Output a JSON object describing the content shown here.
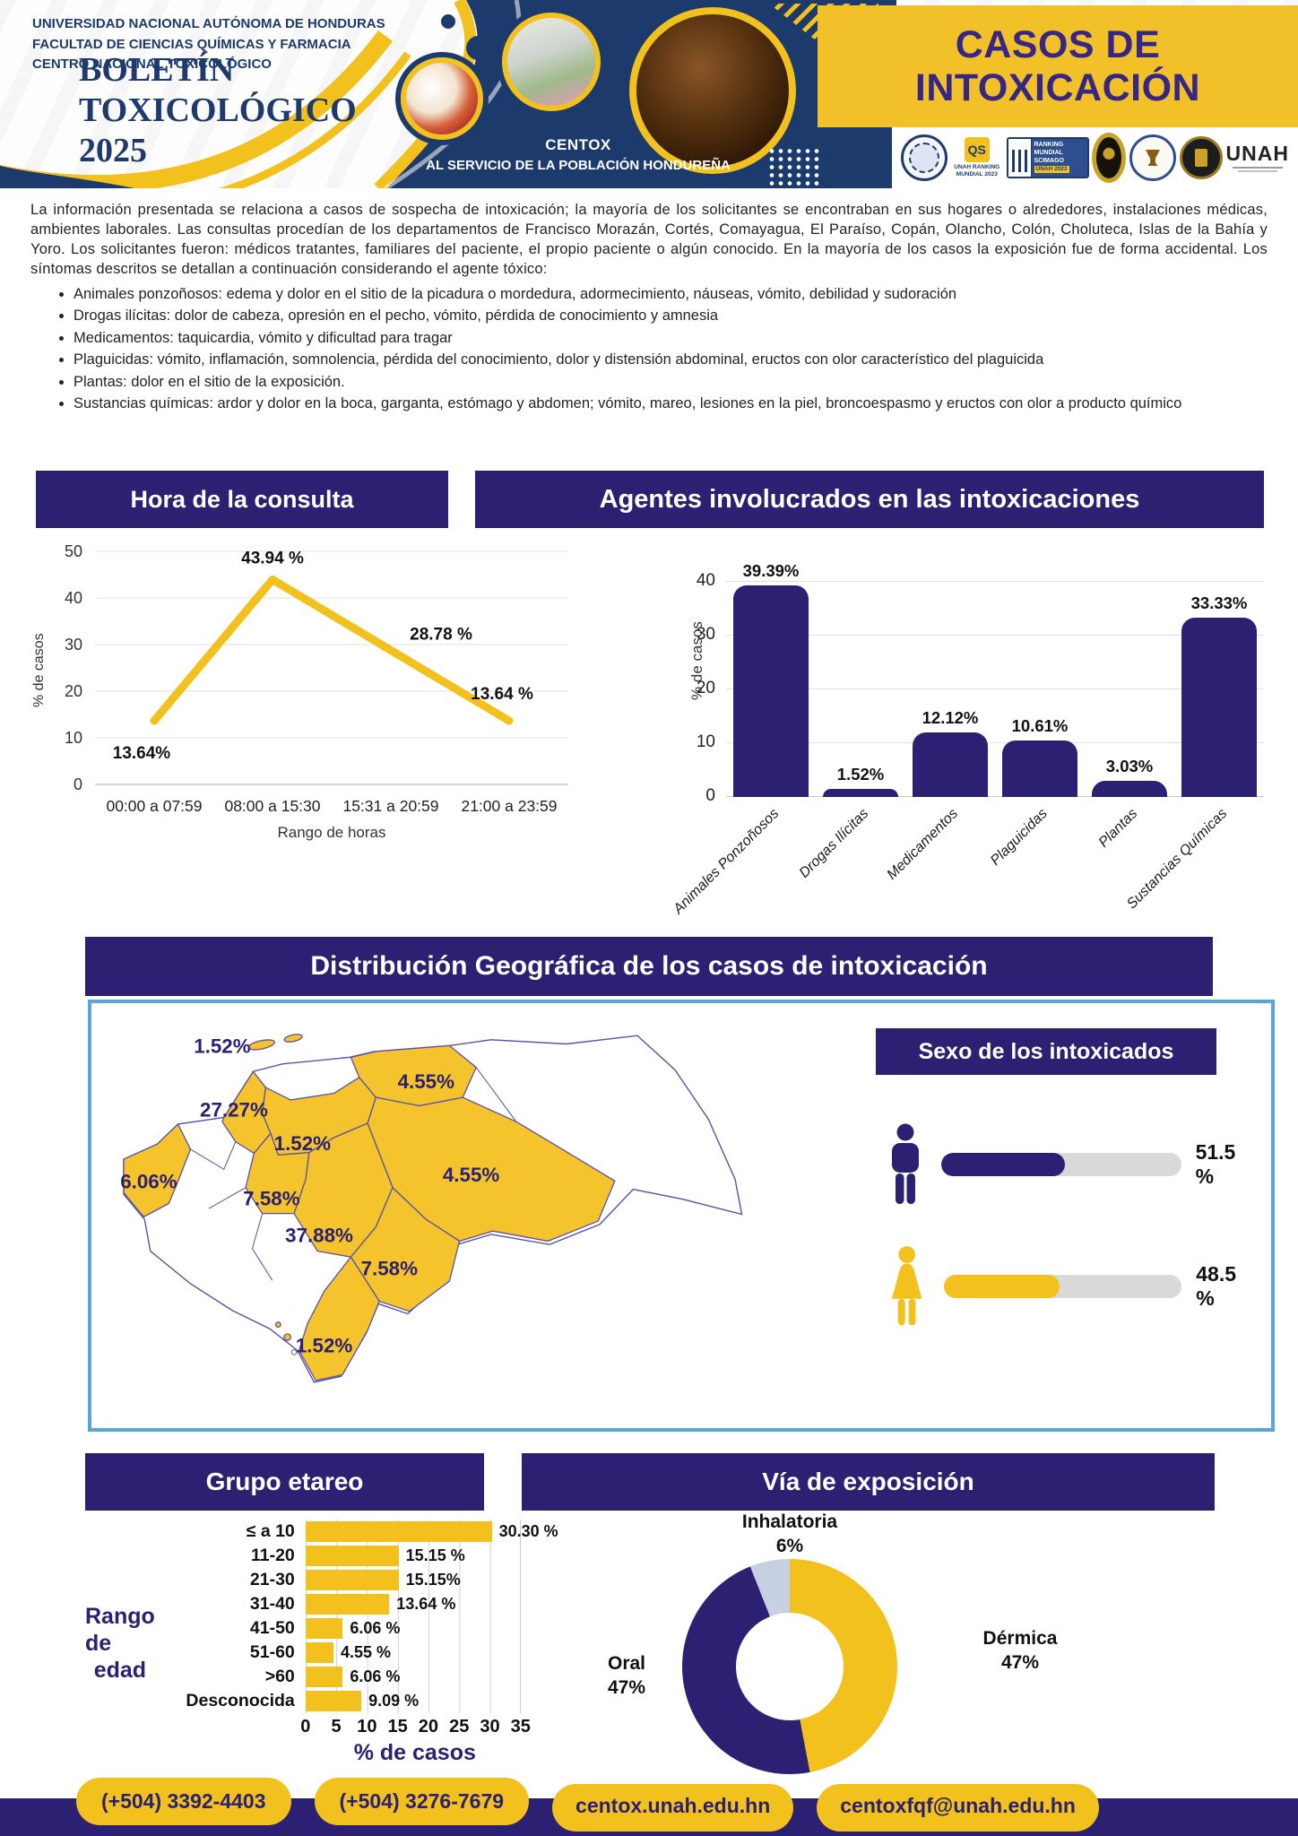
{
  "colors": {
    "banner_purple": "#2B2071",
    "header_navy": "#1C3A6C",
    "accent_yellow": "#F2C11E",
    "map_yellow": "#F5C32C",
    "panel_border_blue": "#56A7D8",
    "track_gray": "#D9D9D9"
  },
  "header": {
    "org_lines": [
      "UNIVERSIDAD NACIONAL AUTÓNOMA DE HONDURAS",
      "FACULTAD DE CIENCIAS QUÍMICAS Y FARMACIA",
      "CENTRO NACIONAL TOXICOLÓGICO"
    ],
    "bulletin_lines": [
      "BOLETÍN",
      "TOXICOLÓGICO",
      "2025"
    ],
    "centox_title": "CENTOX",
    "centox_subtitle": "AL SERVICIO DE LA POBLACIÓN HONDUREÑA",
    "main_title_lines": [
      "CASOS DE",
      "INTOXICACIÓN"
    ],
    "logo_texts": {
      "qs_mark": "QS",
      "qs_caption": "UNAH RANKING MUNDIAL 2023",
      "scimago_line1": "RANKING MUNDIAL SCIMAGO",
      "scimago_badge": "UNAH 2023",
      "unah_wordmark": "UNAH"
    }
  },
  "intro": {
    "paragraph": "La información presentada se relaciona a casos de sospecha de intoxicación; la mayoría de los solicitantes se encontraban en sus hogares o alrededores, instalaciones médicas, ambientes laborales. Las consultas procedían de los departamentos de Francisco Morazán, Cortés, Comayagua, El Paraíso, Copán, Olancho, Colón, Choluteca, Islas de la Bahía y Yoro. Los solicitantes fueron: médicos tratantes, familiares del paciente, el propio paciente o algún conocido. En la mayoría de los casos la exposición fue de forma accidental. Los síntomas descritos se detallan a continuación considerando el agente tóxico:",
    "bullets": [
      "Animales ponzoñosos: edema y dolor en el sitio de la picadura o mordedura, adormecimiento, náuseas, vómito, debilidad y sudoración",
      "Drogas ilícitas: dolor de cabeza, opresión en el pecho, vómito, pérdida de conocimiento y amnesia",
      "Medicamentos: taquicardia, vómito y dificultad para tragar",
      "Plaguicidas: vómito, inflamación, somnolencia, pérdida del conocimiento, dolor y distensión abdominal, eructos con olor característico del plaguicida",
      "Plantas: dolor en el sitio de la exposición.",
      "Sustancias químicas: ardor y dolor en la boca, garganta, estómago y abdomen; vómito, mareo, lesiones en la piel, broncoespasmo y eructos con olor a producto químico"
    ]
  },
  "sections": {
    "hora": "Hora de la consulta",
    "agentes": "Agentes involucrados en las intoxicaciones",
    "geo": "Distribución Geográfica de los casos de intoxicación",
    "sexo": "Sexo de los intoxicados",
    "grupo": "Grupo etareo",
    "via": "Vía de exposición"
  },
  "chart_data": [
    {
      "id": "hora_consulta",
      "type": "line",
      "title": "Hora de la consulta",
      "categories": [
        "00:00 a 07:59",
        "08:00 a 15:30",
        "15:31 a 20:59",
        "21:00 a 23:59"
      ],
      "values": [
        13.64,
        43.94,
        28.78,
        13.64
      ],
      "value_labels": [
        "13.64%",
        "43.94 %",
        "28.78 %",
        "13.64 %"
      ],
      "xlabel": "Rango de horas",
      "ylabel": "% de casos",
      "ylim": [
        0,
        50
      ],
      "yticks": [
        0,
        10,
        20,
        30,
        40,
        50
      ],
      "grid": true,
      "legend": "none",
      "line_color": "#F2C11E"
    },
    {
      "id": "agentes",
      "type": "bar",
      "title": "Agentes involucrados en las intoxicaciones",
      "categories": [
        "Animales Ponzoñosos",
        "Drogas Ilícitas",
        "Medicamentos",
        "Plaguicidas",
        "Plantas",
        "Sustancias Químicas"
      ],
      "values": [
        39.39,
        1.52,
        12.12,
        10.61,
        3.03,
        33.33
      ],
      "value_labels": [
        "39.39%",
        "1.52%",
        "12.12%",
        "10.61%",
        "3.03%",
        "33.33%"
      ],
      "xlabel": "",
      "ylabel": "% de casos",
      "ylim": [
        0,
        40
      ],
      "yticks": [
        0,
        10,
        20,
        30,
        40
      ],
      "grid": true,
      "legend": "none",
      "bar_color": "#2B2071"
    },
    {
      "id": "geo",
      "type": "map",
      "title": "Distribución Geográfica de los casos de intoxicación",
      "region_label_order": "islands, northwest, north-central, northeast-coast, west, central, capital-region, east, southeast, south-tip",
      "region_labels": [
        "1.52%",
        "27.27%",
        "1.52%",
        "4.55%",
        "6.06%",
        "7.58%",
        "37.88%",
        "4.55%",
        "7.58%",
        "1.52%"
      ],
      "highlight_color": "#F5C32C"
    },
    {
      "id": "sexo",
      "type": "bar",
      "title": "Sexo de los intoxicados",
      "categories": [
        "male-icon",
        "female-icon"
      ],
      "values": [
        51.5,
        48.5
      ],
      "value_labels": [
        "51.5 %",
        "48.5 %"
      ],
      "colors": [
        "#2B2071",
        "#F2C11E"
      ]
    },
    {
      "id": "grupo_etareo",
      "type": "bar",
      "title": "Grupo etareo",
      "categories": [
        "≤ a 10",
        "11-20",
        "21-30",
        "31-40",
        "41-50",
        "51-60",
        ">60",
        "Desconocida"
      ],
      "values": [
        30.3,
        15.15,
        15.15,
        13.64,
        6.06,
        4.55,
        6.06,
        9.09
      ],
      "value_labels": [
        "30.30 %",
        "15.15 %",
        "15.15%",
        "13.64 %",
        "6.06 %",
        "4.55 %",
        "6.06 %",
        "9.09 %"
      ],
      "xlabel": "% de casos",
      "side_label_lines": [
        "Rango de",
        "edad"
      ],
      "xlim": [
        0,
        35
      ],
      "xticks": [
        0,
        5,
        10,
        15,
        20,
        25,
        30,
        35
      ],
      "grid": true,
      "bar_color": "#F2C11E"
    },
    {
      "id": "via_exposicion",
      "type": "pie",
      "title": "Vía de exposición",
      "categories": [
        "Dérmica",
        "Oral",
        "Inhalatoria"
      ],
      "values": [
        47,
        47,
        6
      ],
      "pct_labels": [
        "47%",
        "47%",
        "6%"
      ],
      "colors": [
        "#F2C11E",
        "#2B2071",
        "#C7D0E3"
      ],
      "donut": true
    }
  ],
  "footer": {
    "contacts": [
      "(+504) 3392-4403",
      "(+504) 3276-7679",
      "centox.unah.edu.hn",
      "centoxfqf@unah.edu.hn"
    ]
  }
}
